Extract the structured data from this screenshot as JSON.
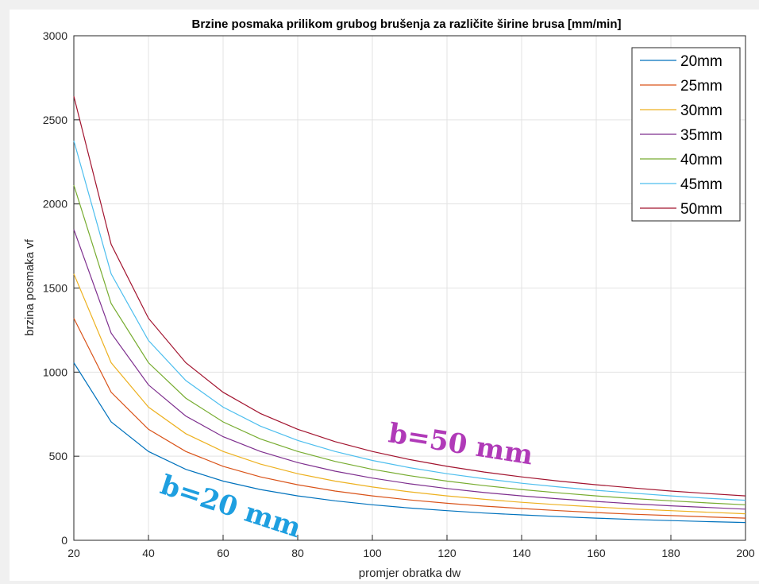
{
  "chart_data": {
    "type": "line",
    "title": "Brzine posmaka prilikom grubog brušenja za različite širine brusa [mm/min]",
    "xlabel": "promjer obratka dw",
    "ylabel": "brzina posmaka vf",
    "xlim": [
      20,
      200
    ],
    "ylim": [
      0,
      3000
    ],
    "xticks": [
      "20",
      "40",
      "60",
      "80",
      "100",
      "120",
      "140",
      "160",
      "180",
      "200"
    ],
    "yticks": [
      "0",
      "500",
      "1000",
      "1500",
      "2000",
      "2500",
      "3000"
    ],
    "grid": true,
    "legend_position": "top-right",
    "x": [
      20,
      30,
      40,
      50,
      60,
      70,
      80,
      90,
      100,
      110,
      120,
      130,
      140,
      150,
      160,
      170,
      180,
      190,
      200
    ],
    "series": [
      {
        "name": "20mm",
        "color": "#0072bd",
        "values": [
          1056,
          704,
          528,
          422,
          352,
          302,
          264,
          235,
          211,
          192,
          176,
          162,
          151,
          141,
          132,
          124,
          117,
          111,
          106
        ]
      },
      {
        "name": "25mm",
        "color": "#d95319",
        "values": [
          1320,
          880,
          660,
          528,
          440,
          377,
          330,
          293,
          264,
          240,
          220,
          203,
          189,
          176,
          165,
          155,
          147,
          139,
          132
        ]
      },
      {
        "name": "30mm",
        "color": "#edb120",
        "values": [
          1584,
          1056,
          792,
          634,
          528,
          453,
          396,
          352,
          317,
          288,
          264,
          244,
          226,
          211,
          198,
          186,
          176,
          167,
          158
        ]
      },
      {
        "name": "35mm",
        "color": "#7e2f8e",
        "values": [
          1848,
          1232,
          924,
          739,
          616,
          528,
          462,
          411,
          370,
          336,
          308,
          284,
          264,
          246,
          231,
          217,
          205,
          195,
          185
        ]
      },
      {
        "name": "40mm",
        "color": "#77ac30",
        "values": [
          2112,
          1408,
          1056,
          845,
          704,
          603,
          528,
          469,
          422,
          384,
          352,
          325,
          302,
          282,
          264,
          248,
          235,
          222,
          211
        ]
      },
      {
        "name": "45mm",
        "color": "#4dbeee",
        "values": [
          2376,
          1584,
          1188,
          950,
          792,
          679,
          594,
          528,
          475,
          432,
          396,
          366,
          339,
          317,
          297,
          280,
          264,
          250,
          238
        ]
      },
      {
        "name": "50mm",
        "color": "#a2142f",
        "values": [
          2640,
          1760,
          1320,
          1056,
          880,
          754,
          660,
          587,
          528,
          480,
          440,
          406,
          377,
          352,
          330,
          311,
          293,
          278,
          264
        ]
      }
    ],
    "annotations": [
      {
        "text": "b=20 mm",
        "color": "#1e9fe0"
      },
      {
        "text": "b=50 mm",
        "color": "#b03ab8"
      }
    ]
  }
}
